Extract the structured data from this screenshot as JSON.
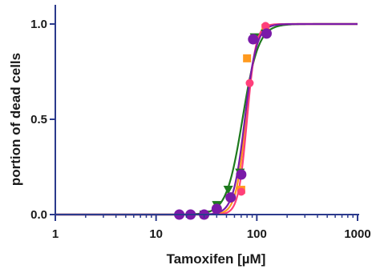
{
  "chart_data": {
    "type": "scatter",
    "xlabel": "Tamoxifen [µM]",
    "ylabel": "portion of dead cells",
    "xscale": "log",
    "xlim": [
      1,
      1000
    ],
    "ylim": [
      0,
      1
    ],
    "x_ticks": [
      {
        "value": 1,
        "label": "1"
      },
      {
        "value": 10,
        "label": "10"
      },
      {
        "value": 100,
        "label": "100"
      },
      {
        "value": 1000,
        "label": "1000"
      }
    ],
    "y_ticks": [
      {
        "value": 0,
        "label": "0.0"
      },
      {
        "value": 0.5,
        "label": "0.5"
      },
      {
        "value": 1,
        "label": "1.0"
      }
    ],
    "grid": false,
    "axis_color": "#2b3a8c",
    "series": [
      {
        "color": "#ff9a1f",
        "marker": "square",
        "curve": {
          "bottom": 0,
          "top": 1,
          "ec50": 78,
          "hill": 8.5
        },
        "points": [
          {
            "x": 30,
            "y": 0.0
          },
          {
            "x": 40,
            "y": 0.03
          },
          {
            "x": 55,
            "y": 0.09
          },
          {
            "x": 70,
            "y": 0.13
          },
          {
            "x": 80,
            "y": 0.82
          },
          {
            "x": 122,
            "y": 0.98
          }
        ]
      },
      {
        "color": "#1e7a1e",
        "marker": "triangle-down",
        "curve": {
          "bottom": 0,
          "top": 1,
          "ec50": 72,
          "hill": 5.5
        },
        "points": [
          {
            "x": 30,
            "y": 0.0
          },
          {
            "x": 40,
            "y": 0.05
          },
          {
            "x": 52,
            "y": 0.13
          },
          {
            "x": 68,
            "y": 0.22
          },
          {
            "x": 95,
            "y": 0.93
          },
          {
            "x": 122,
            "y": 0.95
          }
        ]
      },
      {
        "color": "#ff3f7a",
        "marker": "circle",
        "curve": {
          "bottom": 0,
          "top": 1,
          "ec50": 80,
          "hill": 10
        },
        "points": [
          {
            "x": 70,
            "y": 0.12
          },
          {
            "x": 85,
            "y": 0.69
          },
          {
            "x": 122,
            "y": 0.99
          }
        ]
      },
      {
        "color": "#7a1aa8",
        "marker": "circle",
        "curve": {
          "bottom": 0,
          "top": 1,
          "ec50": 76,
          "hill": 7.5
        },
        "points": [
          {
            "x": 17,
            "y": 0.0
          },
          {
            "x": 22,
            "y": 0.0
          },
          {
            "x": 30,
            "y": 0.0
          },
          {
            "x": 40,
            "y": 0.03
          },
          {
            "x": 55,
            "y": 0.09
          },
          {
            "x": 70,
            "y": 0.21
          },
          {
            "x": 92,
            "y": 0.92
          },
          {
            "x": 125,
            "y": 0.95
          }
        ]
      }
    ]
  }
}
